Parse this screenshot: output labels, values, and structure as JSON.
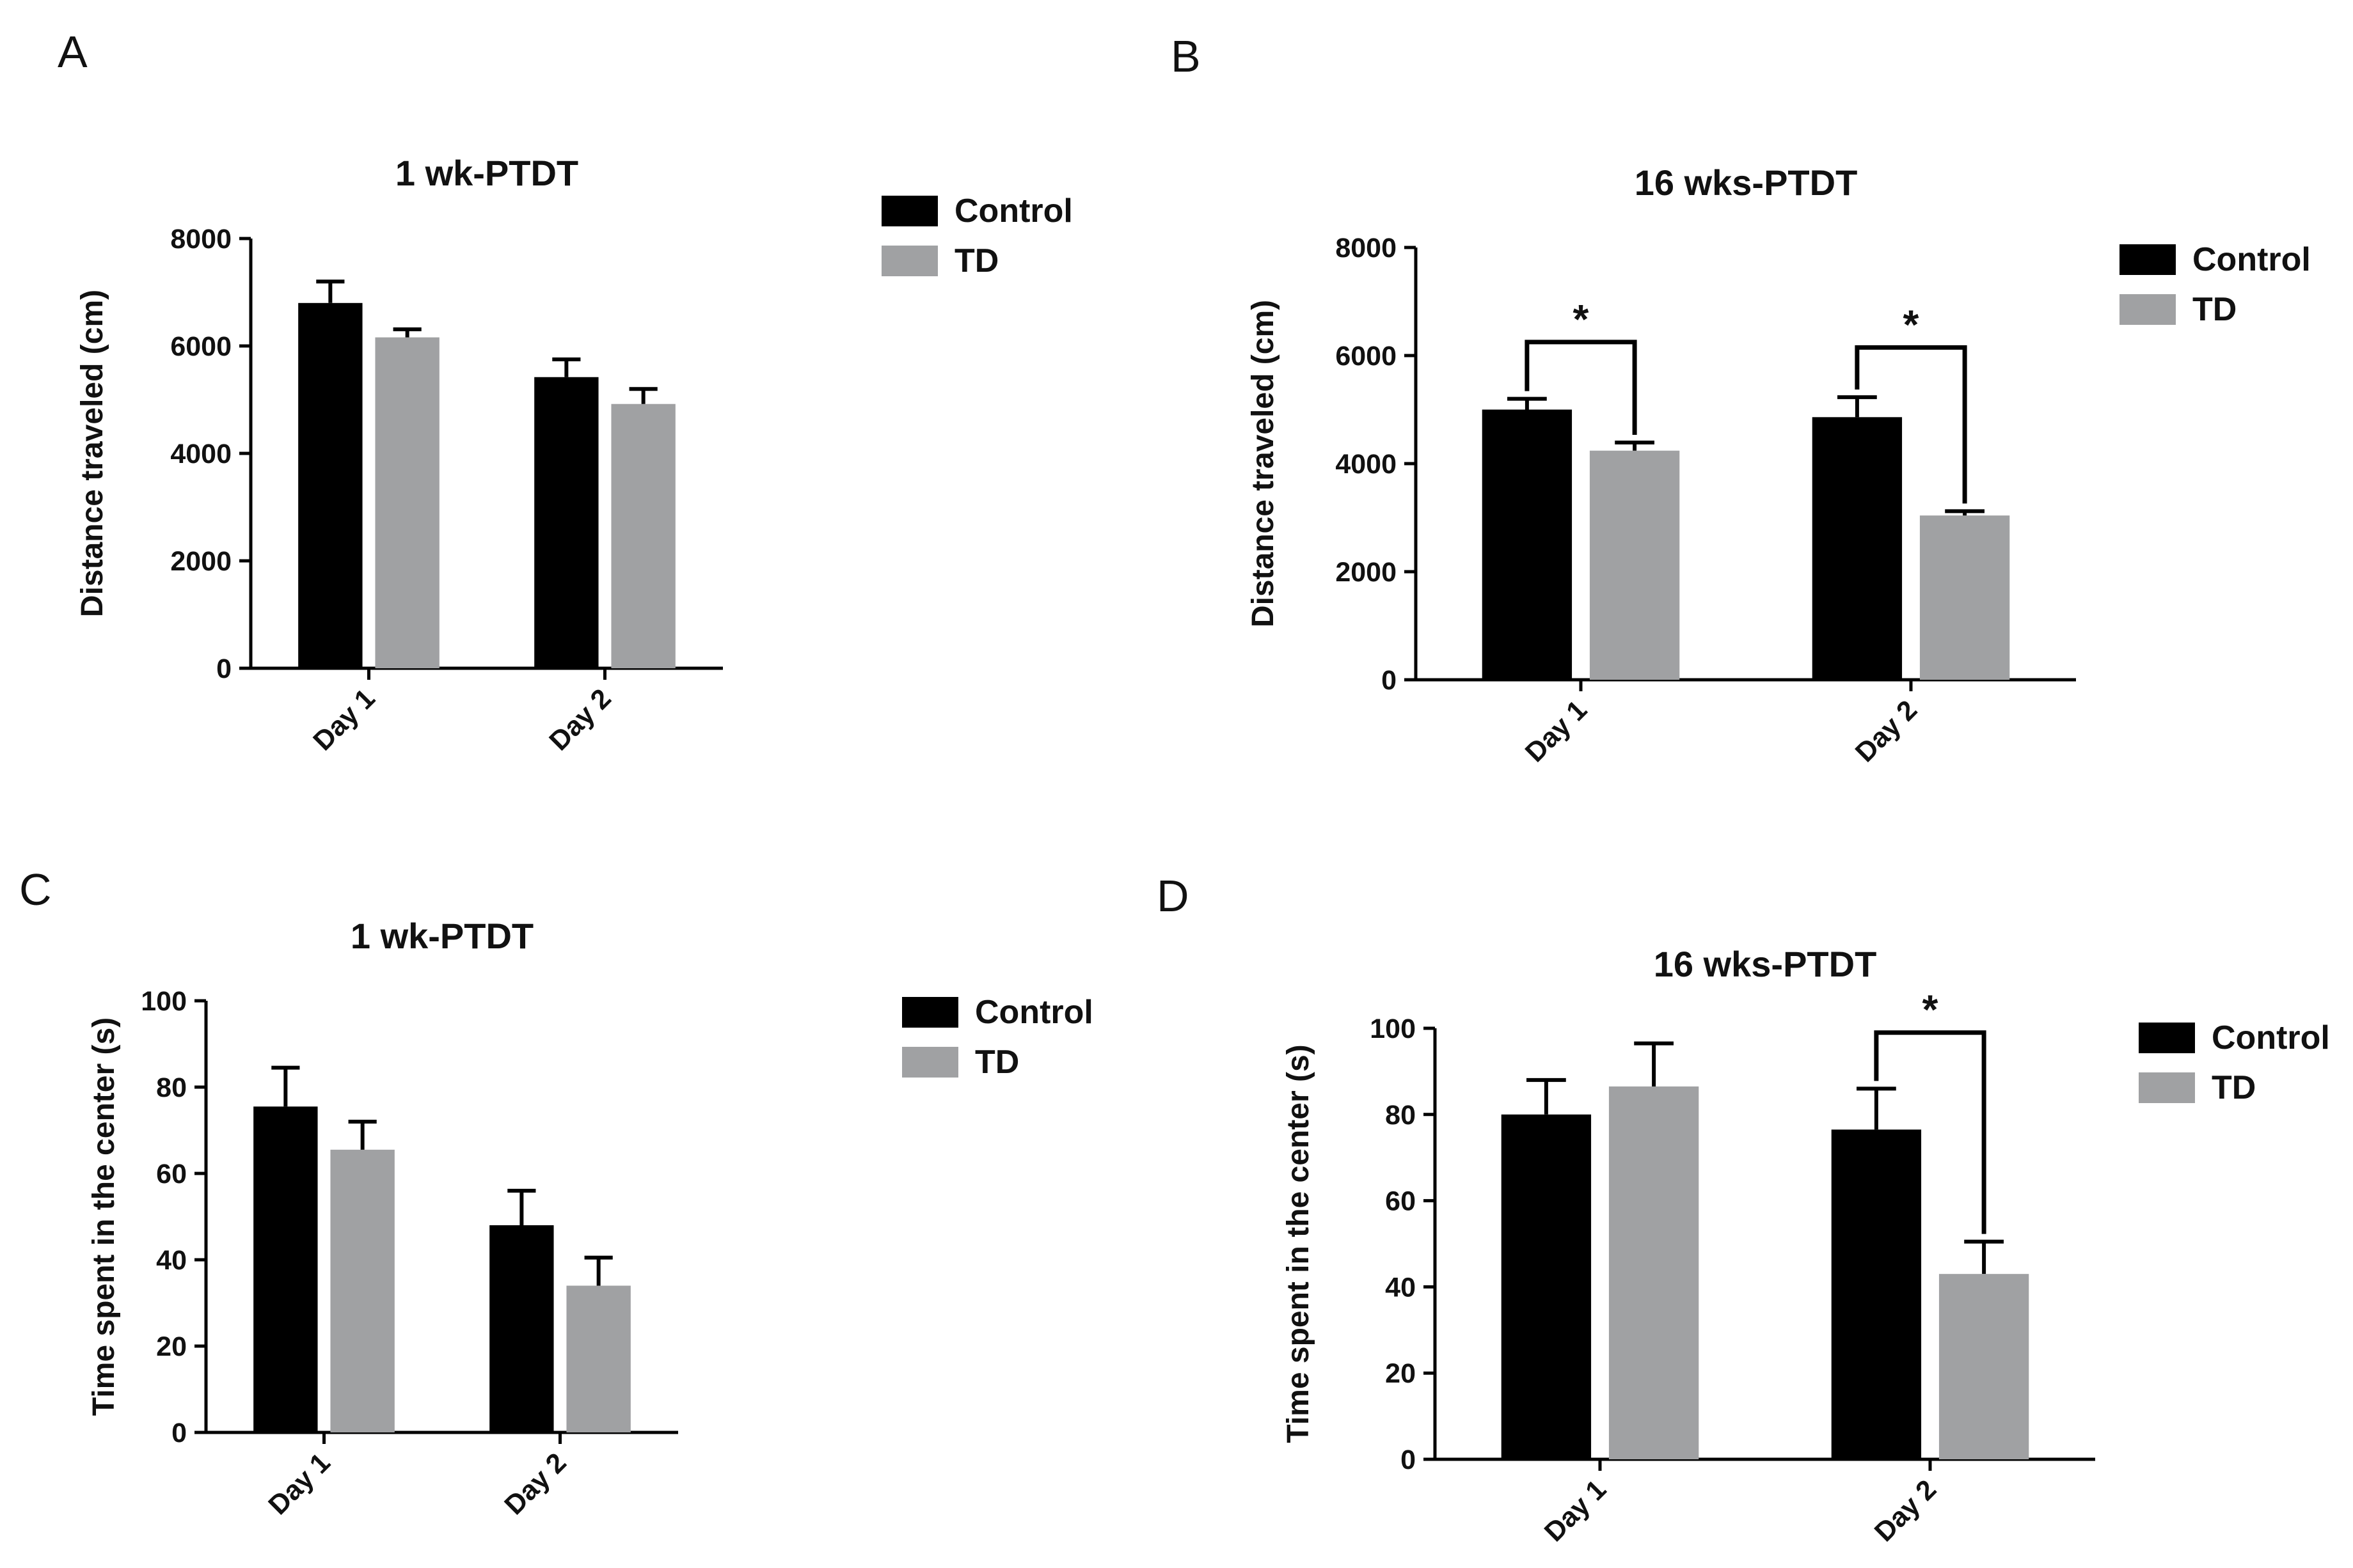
{
  "colors": {
    "Control": "#000000",
    "TD": "#a0a1a3",
    "axis": "#000000"
  },
  "chart_data": [
    {
      "panel": "A",
      "type": "bar",
      "title": "1 wk-PTDT",
      "xlabel": "",
      "ylabel": "Distance traveled (cm)",
      "ylim": [
        0,
        8000
      ],
      "yticks": [
        0,
        2000,
        4000,
        6000,
        8000
      ],
      "categories": [
        "Day 1",
        "Day 2"
      ],
      "series": [
        {
          "name": "Control",
          "values": [
            6800,
            5420
          ],
          "errors": [
            400,
            330
          ]
        },
        {
          "name": "TD",
          "values": [
            6160,
            4920
          ],
          "errors": [
            150,
            280
          ]
        }
      ],
      "legend": [
        "Control",
        "TD"
      ],
      "legend_position": "top-right",
      "significance": []
    },
    {
      "panel": "B",
      "type": "bar",
      "title": "16 wks-PTDT",
      "xlabel": "",
      "ylabel": "Distance traveled (cm)",
      "ylim": [
        0,
        8000
      ],
      "yticks": [
        0,
        2000,
        4000,
        6000,
        8000
      ],
      "categories": [
        "Day 1",
        "Day 2"
      ],
      "series": [
        {
          "name": "Control",
          "values": [
            5000,
            4860
          ],
          "errors": [
            200,
            370
          ]
        },
        {
          "name": "TD",
          "values": [
            4240,
            3040
          ],
          "errors": [
            150,
            80
          ]
        }
      ],
      "legend": [
        "Control",
        "TD"
      ],
      "legend_position": "top-right",
      "significance": [
        {
          "category": 0,
          "label": "*",
          "y": 6250
        },
        {
          "category": 1,
          "label": "*",
          "y": 6150
        }
      ]
    },
    {
      "panel": "C",
      "type": "bar",
      "title": "1 wk-PTDT",
      "xlabel": "",
      "ylabel": "Time spent in the center  (s)",
      "ylim": [
        0,
        100
      ],
      "yticks": [
        0,
        20,
        40,
        60,
        80,
        100
      ],
      "categories": [
        "Day 1",
        "Day 2"
      ],
      "series": [
        {
          "name": "Control",
          "values": [
            75.5,
            48
          ],
          "errors": [
            9,
            8
          ]
        },
        {
          "name": "TD",
          "values": [
            65.5,
            34
          ],
          "errors": [
            6.5,
            6.5
          ]
        }
      ],
      "legend": [
        "Control",
        "TD"
      ],
      "legend_position": "top-right",
      "significance": []
    },
    {
      "panel": "D",
      "type": "bar",
      "title": "16 wks-PTDT",
      "xlabel": "",
      "ylabel": "Time spent in the center (s)",
      "ylim": [
        0,
        100
      ],
      "yticks": [
        0,
        20,
        40,
        60,
        80,
        100
      ],
      "categories": [
        "Day 1",
        "Day 2"
      ],
      "series": [
        {
          "name": "Control",
          "values": [
            80,
            76.5
          ],
          "errors": [
            8,
            9.5
          ]
        },
        {
          "name": "TD",
          "values": [
            86.5,
            43
          ],
          "errors": [
            10,
            7.5
          ]
        }
      ],
      "legend": [
        "Control",
        "TD"
      ],
      "legend_position": "top-right",
      "significance": [
        {
          "category": 1,
          "label": "*",
          "y": 99
        }
      ]
    }
  ]
}
